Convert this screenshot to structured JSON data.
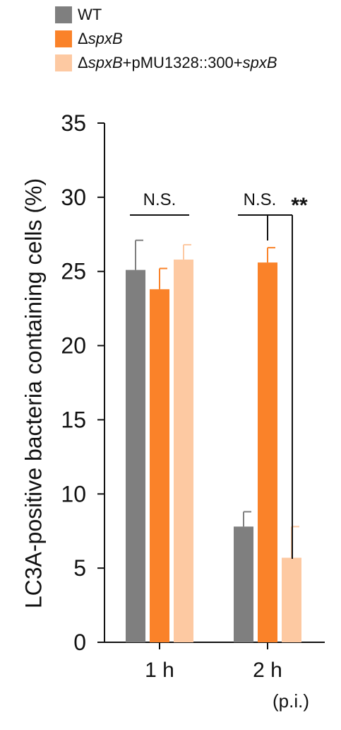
{
  "chart_data": {
    "type": "bar",
    "categories": [
      "1 h",
      "2 h"
    ],
    "series": [
      {
        "name": "WT",
        "values": [
          25.1,
          7.8
        ],
        "errors": [
          2.0,
          1.0
        ],
        "color": "#7f7f7f"
      },
      {
        "name": "ΔspxB",
        "values": [
          23.8,
          25.6
        ],
        "errors": [
          1.4,
          1.0
        ],
        "color": "#fa8229"
      },
      {
        "name": "ΔspxB+pMU1328::300+spxB",
        "values": [
          25.8,
          5.7
        ],
        "errors": [
          1.0,
          2.1
        ],
        "color": "#fdc9a2"
      }
    ],
    "legend_parts": [
      [
        {
          "t": "WT",
          "i": false
        }
      ],
      [
        {
          "t": "Δ",
          "i": false
        },
        {
          "t": "spxB",
          "i": true
        }
      ],
      [
        {
          "t": "Δ",
          "i": false
        },
        {
          "t": "spxB",
          "i": true
        },
        {
          "t": "+pMU1328::300+",
          "i": false
        },
        {
          "t": "spxB",
          "i": true
        }
      ]
    ],
    "ylabel": "LC3A-positive bacteria containing cells (%)",
    "xlabel": "",
    "x_unit_note": "(p.i.)",
    "ylim": [
      0,
      35
    ],
    "yticks": [
      0,
      5,
      10,
      15,
      20,
      25,
      30,
      35
    ],
    "legend_position": "top-left",
    "grid": false,
    "annotations": [
      {
        "text": "N.S.",
        "group": "1 h",
        "compares": [
          "WT",
          "ΔspxB",
          "ΔspxB+pMU1328::300+spxB"
        ]
      },
      {
        "text": "N.S.",
        "group": "2 h",
        "compares": [
          "WT",
          "ΔspxB"
        ]
      },
      {
        "text": "**",
        "group": "2 h",
        "compares": [
          "ΔspxB",
          "ΔspxB+pMU1328::300+spxB"
        ]
      }
    ]
  }
}
